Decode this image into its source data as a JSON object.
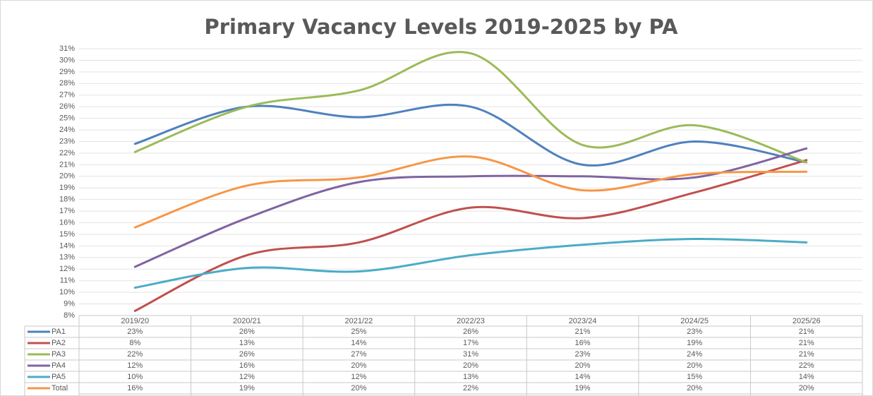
{
  "chart_data": {
    "type": "line",
    "title": "Primary Vacancy Levels 2019-2025 by PA",
    "categories": [
      "2019/20",
      "2020/21",
      "2021/22",
      "2022/23",
      "2023/24",
      "2024/25",
      "2025/26"
    ],
    "ylim": [
      8,
      31
    ],
    "yticks": [
      {
        "value": 8,
        "label": "8%"
      },
      {
        "value": 9,
        "label": "9%"
      },
      {
        "value": 10,
        "label": "10%"
      },
      {
        "value": 11,
        "label": "11%"
      },
      {
        "value": 12,
        "label": "12%"
      },
      {
        "value": 13,
        "label": "13%"
      },
      {
        "value": 14,
        "label": "14%"
      },
      {
        "value": 15,
        "label": "15%"
      },
      {
        "value": 16,
        "label": "16%"
      },
      {
        "value": 17,
        "label": "17%"
      },
      {
        "value": 18,
        "label": "18%"
      },
      {
        "value": 19,
        "label": "19%"
      },
      {
        "value": 20,
        "label": "20%"
      },
      {
        "value": 21,
        "label": "21%"
      },
      {
        "value": 22,
        "label": "22%"
      },
      {
        "value": 23,
        "label": "23%"
      },
      {
        "value": 24,
        "label": "24%"
      },
      {
        "value": 25,
        "label": "25%"
      },
      {
        "value": 26,
        "label": "26%"
      },
      {
        "value": 27,
        "label": "27%"
      },
      {
        "value": 28,
        "label": "28%"
      },
      {
        "value": 29,
        "label": "29%"
      },
      {
        "value": 30,
        "label": "30%"
      },
      {
        "value": 31,
        "label": "31%"
      }
    ],
    "grid": true,
    "smooth": true,
    "series": [
      {
        "name": "PA1",
        "color": "#4f81bd",
        "values": [
          22.8,
          26.0,
          25.1,
          26.0,
          21.0,
          23.0,
          21.2
        ],
        "value_labels": [
          "23%",
          "26%",
          "25%",
          "26%",
          "21%",
          "23%",
          "21%"
        ]
      },
      {
        "name": "PA2",
        "color": "#c0504d",
        "values": [
          8.4,
          13.2,
          14.3,
          17.3,
          16.4,
          18.6,
          21.4
        ],
        "value_labels": [
          "8%",
          "13%",
          "14%",
          "17%",
          "16%",
          "19%",
          "21%"
        ]
      },
      {
        "name": "PA3",
        "color": "#9bbb59",
        "values": [
          22.1,
          26.0,
          27.4,
          30.6,
          22.7,
          24.4,
          21.2
        ],
        "value_labels": [
          "22%",
          "26%",
          "27%",
          "31%",
          "23%",
          "24%",
          "21%"
        ]
      },
      {
        "name": "PA4",
        "color": "#8064a2",
        "values": [
          12.2,
          16.4,
          19.5,
          20.0,
          20.0,
          19.9,
          22.4
        ],
        "value_labels": [
          "12%",
          "16%",
          "20%",
          "20%",
          "20%",
          "20%",
          "22%"
        ]
      },
      {
        "name": "PA5",
        "color": "#4bacc6",
        "values": [
          10.4,
          12.1,
          11.8,
          13.2,
          14.1,
          14.6,
          14.3
        ],
        "value_labels": [
          "10%",
          "12%",
          "12%",
          "13%",
          "14%",
          "15%",
          "14%"
        ]
      },
      {
        "name": "Total",
        "color": "#f79646",
        "values": [
          15.6,
          19.2,
          19.9,
          21.7,
          18.8,
          20.2,
          20.4
        ],
        "value_labels": [
          "16%",
          "19%",
          "20%",
          "22%",
          "19%",
          "20%",
          "20%"
        ]
      }
    ]
  }
}
